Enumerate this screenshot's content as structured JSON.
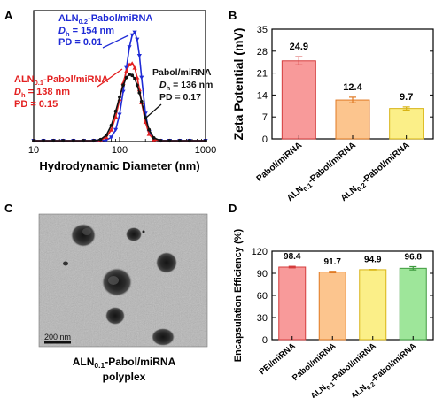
{
  "panels": {
    "A": {
      "letter": "A",
      "annotations": {
        "aln02": {
          "name_main": "ALN",
          "name_sub": "0.2",
          "name_tail": "-Pabol/miRNA",
          "dh_label": "D",
          "dh_sub": "h",
          "dh_value": " = 154 nm",
          "pd": "PD = 0.01"
        },
        "aln01": {
          "name_main": "ALN",
          "name_sub": "0.1",
          "name_tail": "-Pabol/miRNA",
          "dh_label": "D",
          "dh_sub": "h",
          "dh_value": " = 138 nm",
          "pd": "PD = 0.15"
        },
        "pabol": {
          "name": "Pabol/miRNA",
          "dh_label": "D",
          "dh_sub": "h",
          "dh_value": " = 136 nm",
          "pd": "PD = 0.17"
        }
      }
    },
    "B": {
      "letter": "B"
    },
    "C": {
      "letter": "C",
      "scale_bar": "200 nm",
      "caption_main": "ALN",
      "caption_sub": "0.1",
      "caption_tail": "-Pabol/miRNA",
      "caption_line2": "polyplex"
    },
    "D": {
      "letter": "D"
    }
  },
  "colors": {
    "aln02": "#1f2bd6",
    "aln01": "#e32020",
    "pabol": "#111111",
    "bar_red": "#f89a9a",
    "bar_red_edge": "#d43c3c",
    "bar_orange": "#fcc58e",
    "bar_orange_edge": "#e07a24",
    "bar_yellow": "#fbef88",
    "bar_yellow_edge": "#d8b415",
    "bar_green": "#9ee69a",
    "bar_green_edge": "#3e9a3e"
  },
  "chart_data": [
    {
      "type": "line",
      "panel": "A",
      "xlabel": "Hydrodynamic Diameter (nm)",
      "ylabel": "",
      "x_scale": "log",
      "xlim": [
        10,
        1000
      ],
      "x_ticks": [
        10,
        100,
        1000
      ],
      "x_tick_labels": [
        "10",
        "100",
        "1000"
      ],
      "y_range": [
        0,
        1
      ],
      "y_axis_shown": false,
      "series": [
        {
          "name": "ALN0.2-Pabol/miRNA",
          "color": "#1f2bd6",
          "x": [
            10,
            13,
            17,
            22,
            29,
            38,
            50,
            60,
            70,
            80,
            90,
            100,
            110,
            120,
            130,
            140,
            150,
            160,
            170,
            180,
            200,
            220,
            250,
            300,
            380,
            500,
            650,
            1000
          ],
          "y": [
            0,
            0,
            0,
            0,
            0,
            0,
            0,
            0,
            0.005,
            0.03,
            0.1,
            0.24,
            0.45,
            0.67,
            0.86,
            0.97,
            0.995,
            0.93,
            0.78,
            0.58,
            0.25,
            0.08,
            0.01,
            0,
            0,
            0,
            0,
            0
          ]
        },
        {
          "name": "ALN0.1-Pabol/miRNA",
          "color": "#e32020",
          "x": [
            10,
            13,
            17,
            22,
            29,
            38,
            50,
            60,
            70,
            80,
            90,
            100,
            110,
            120,
            130,
            140,
            150,
            160,
            170,
            180,
            200,
            220,
            250,
            300,
            380,
            500,
            650,
            1000
          ],
          "y": [
            0,
            0,
            0,
            0,
            0,
            0,
            0,
            0.004,
            0.03,
            0.1,
            0.22,
            0.38,
            0.53,
            0.64,
            0.7,
            0.71,
            0.67,
            0.58,
            0.47,
            0.35,
            0.17,
            0.06,
            0.01,
            0,
            0,
            0,
            0,
            0
          ]
        },
        {
          "name": "Pabol/miRNA",
          "color": "#111111",
          "x": [
            10,
            13,
            17,
            22,
            29,
            38,
            50,
            60,
            70,
            80,
            90,
            100,
            110,
            120,
            130,
            140,
            150,
            160,
            170,
            180,
            200,
            220,
            250,
            300,
            380,
            500,
            650,
            1000
          ],
          "y": [
            0,
            0,
            0,
            0,
            0,
            0,
            0,
            0.01,
            0.05,
            0.14,
            0.27,
            0.4,
            0.51,
            0.58,
            0.61,
            0.6,
            0.57,
            0.51,
            0.44,
            0.36,
            0.21,
            0.1,
            0.025,
            0,
            0,
            0,
            0,
            0
          ]
        }
      ]
    },
    {
      "type": "bar",
      "panel": "B",
      "ylabel": "Zeta Potential (mV)",
      "ylim": [
        0,
        35
      ],
      "y_ticks": [
        0,
        7,
        14,
        21,
        28,
        35
      ],
      "categories": [
        {
          "main": "Pabol/miRNA",
          "sub": "",
          "tail": ""
        },
        {
          "main": "ALN",
          "sub": "0.1",
          "tail": "-Pabol/miRNA"
        },
        {
          "main": "ALN",
          "sub": "0.2",
          "tail": "-Pabol/miRNA"
        }
      ],
      "values": [
        24.9,
        12.4,
        9.7
      ],
      "value_labels": [
        "24.9",
        "12.4",
        "9.7"
      ],
      "errors": [
        1.3,
        0.9,
        0.5
      ],
      "colors": [
        "bar_red",
        "bar_orange",
        "bar_yellow"
      ],
      "edge_colors": [
        "bar_red_edge",
        "bar_orange_edge",
        "bar_yellow_edge"
      ]
    },
    {
      "type": "bar",
      "panel": "D",
      "ylabel": "Encapsulation Efficiency (%)",
      "ylim": [
        0,
        120
      ],
      "y_ticks": [
        0,
        30,
        60,
        90,
        120
      ],
      "categories": [
        {
          "main": "PEI/miRNA",
          "sub": "",
          "tail": ""
        },
        {
          "main": "Pabol/miRNA",
          "sub": "",
          "tail": ""
        },
        {
          "main": "ALN",
          "sub": "0.1",
          "tail": "-Pabol/miRNA"
        },
        {
          "main": "ALN",
          "sub": "0.2",
          "tail": "-Pabol/miRNA"
        }
      ],
      "values": [
        98.4,
        91.7,
        94.9,
        96.8
      ],
      "value_labels": [
        "98.4",
        "91.7",
        "94.9",
        "96.8"
      ],
      "errors": [
        1.0,
        1.0,
        0.3,
        2.2
      ],
      "colors": [
        "bar_red",
        "bar_orange",
        "bar_yellow",
        "bar_green"
      ],
      "edge_colors": [
        "bar_red_edge",
        "bar_orange_edge",
        "bar_yellow_edge",
        "bar_green_edge"
      ]
    }
  ]
}
